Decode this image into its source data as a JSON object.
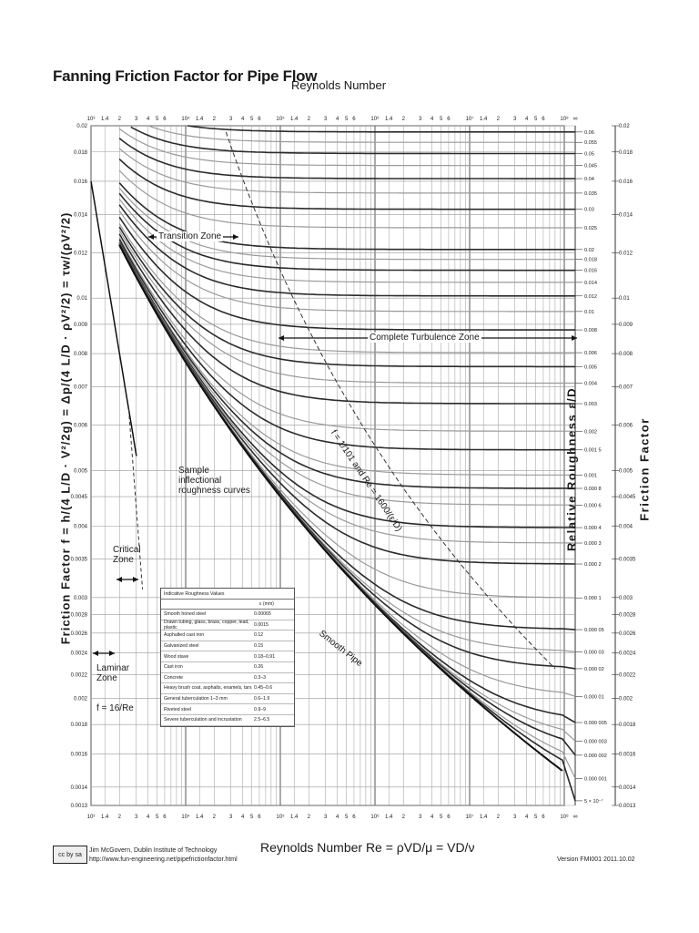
{
  "header": {
    "title": "Fanning Friction Factor for Pipe Flow",
    "top_xlabel": "Reynolds Number"
  },
  "chart_data": {
    "type": "line",
    "title": "Fanning Friction Factor for Pipe Flow",
    "xlabel": "Reynolds Number  Re = ρVD/μ = VD/ν",
    "ylabel_left": "Friction Factor  f = h/(4 L/D · V²/2g) = Δp/(4 L/D · ρV²/2) = τw/(ρV²/2)",
    "ylabel_right": "Friction Factor",
    "rr_label": "Relative Roughness ε/D",
    "x_scale": "log",
    "y_scale": "log",
    "xlim": [
      1000,
      100000000
    ],
    "ylim": [
      0.0013,
      0.02
    ],
    "x_decade_labels": [
      "10³",
      "10⁴",
      "10⁵",
      "10⁶",
      "10⁷",
      "10⁸"
    ],
    "x_minor_labels": [
      "1.4",
      "2",
      "3",
      "4",
      "5",
      "6"
    ],
    "x_inf_label": "∞",
    "y_ticks": [
      0.02,
      0.018,
      0.016,
      0.014,
      0.012,
      0.01,
      0.009,
      0.008,
      0.007,
      0.006,
      0.005,
      0.0045,
      0.004,
      0.0035,
      0.003,
      0.0028,
      0.0026,
      0.0024,
      0.0022,
      0.002,
      0.0018,
      0.0016,
      0.0014,
      0.0013
    ],
    "y_tick_labels": [
      "0.02",
      "0.018",
      "0.016",
      "0.014",
      "0.012",
      "0.01",
      "0.009",
      "0.008",
      "0.007",
      "0.006",
      "0.005",
      "0.0045",
      "0.004",
      "0.0035",
      "0.003",
      "0.0028",
      "0.0026",
      "0.0024",
      "0.0022",
      "0.002",
      "0.0018",
      "0.0016",
      "0.0014",
      "0.0013"
    ],
    "roughness_values": [
      0.06,
      0.055,
      0.05,
      0.045,
      0.04,
      0.035,
      0.03,
      0.025,
      0.02,
      0.018,
      0.016,
      0.014,
      0.012,
      0.01,
      0.008,
      0.006,
      0.005,
      0.004,
      0.003,
      0.002,
      0.0015,
      0.001,
      0.0008,
      0.0006,
      0.0004,
      0.0003,
      0.0002,
      0.0001,
      5e-05,
      3e-05,
      2e-05,
      1e-05,
      5e-06,
      3e-06,
      2e-06,
      1e-06,
      5e-07
    ],
    "roughness_labels": [
      "0.06",
      "0.055",
      "0.05",
      "0.045",
      "0.04",
      "0.035",
      "0.03",
      "0.025",
      "0.02",
      "0.018",
      "0.016",
      "0.014",
      "0.012",
      "0.01",
      "0.008",
      "0.006",
      "0.005",
      "0.004",
      "0.003",
      "0.002",
      "0.001 5",
      "0.001",
      "0.000 8",
      "0.000 6",
      "0.000 4",
      "0.000 3",
      "0.000 2",
      "0.000 1",
      "0.000 05",
      "0.000 03",
      "0.000 02",
      "0.000 01",
      "0.000 005",
      "0.000 003",
      "0.000 002",
      "0.000 001",
      "5 × 10⁻⁷"
    ],
    "annotations": {
      "transition_zone": "Transition Zone",
      "complete_turbulence": "Complete Turbulence Zone",
      "critical_zone": "Critical Zone",
      "laminar_zone": "Laminar Zone",
      "laminar_eq": "f = 16/Re",
      "sample_curves": "Sample inflectional roughness curves",
      "smooth_pipe": "Smooth Pipe",
      "boundary_eq": "f = 1/101 and Re = 1600/(ε/D)"
    }
  },
  "roughness_table": {
    "caption": "Indicative Roughness Values",
    "header": "ε (mm)",
    "rows": [
      {
        "material": "Smooth honed steel",
        "value": "0.00065"
      },
      {
        "material": "Drawn tubing, glass, brass, copper, lead, plastic",
        "value": "0.0015"
      },
      {
        "material": "Asphalted cast iron",
        "value": "0.12"
      },
      {
        "material": "Galvanized steel",
        "value": "0.15"
      },
      {
        "material": "Wood stave",
        "value": "0.18–0.91"
      },
      {
        "material": "Cast iron",
        "value": "0.26"
      },
      {
        "material": "Concrete",
        "value": "0.3–3"
      },
      {
        "material": "Heavy brush coat, asphalts, enamels, tars",
        "value": "0.45–0.6"
      },
      {
        "material": "General tuberculation 1–3 mm",
        "value": "0.6–1.9"
      },
      {
        "material": "Riveted steel",
        "value": "0.9–9"
      },
      {
        "material": "Severe tuberculation and incrustation",
        "value": "2.5–6.5"
      }
    ]
  },
  "footer": {
    "cc_badge": "cc by sa",
    "author": "Jim McGovern, Dublin Institute of Technology",
    "url": "http://www.fun-engineering.net/pipefrictionfactor.html",
    "version": "Version FMI001 2011.10.02"
  },
  "colors": {
    "grid": "#8a8a8a",
    "curve_dark": "#2b2b2b",
    "curve_light": "#9a9a9a"
  }
}
